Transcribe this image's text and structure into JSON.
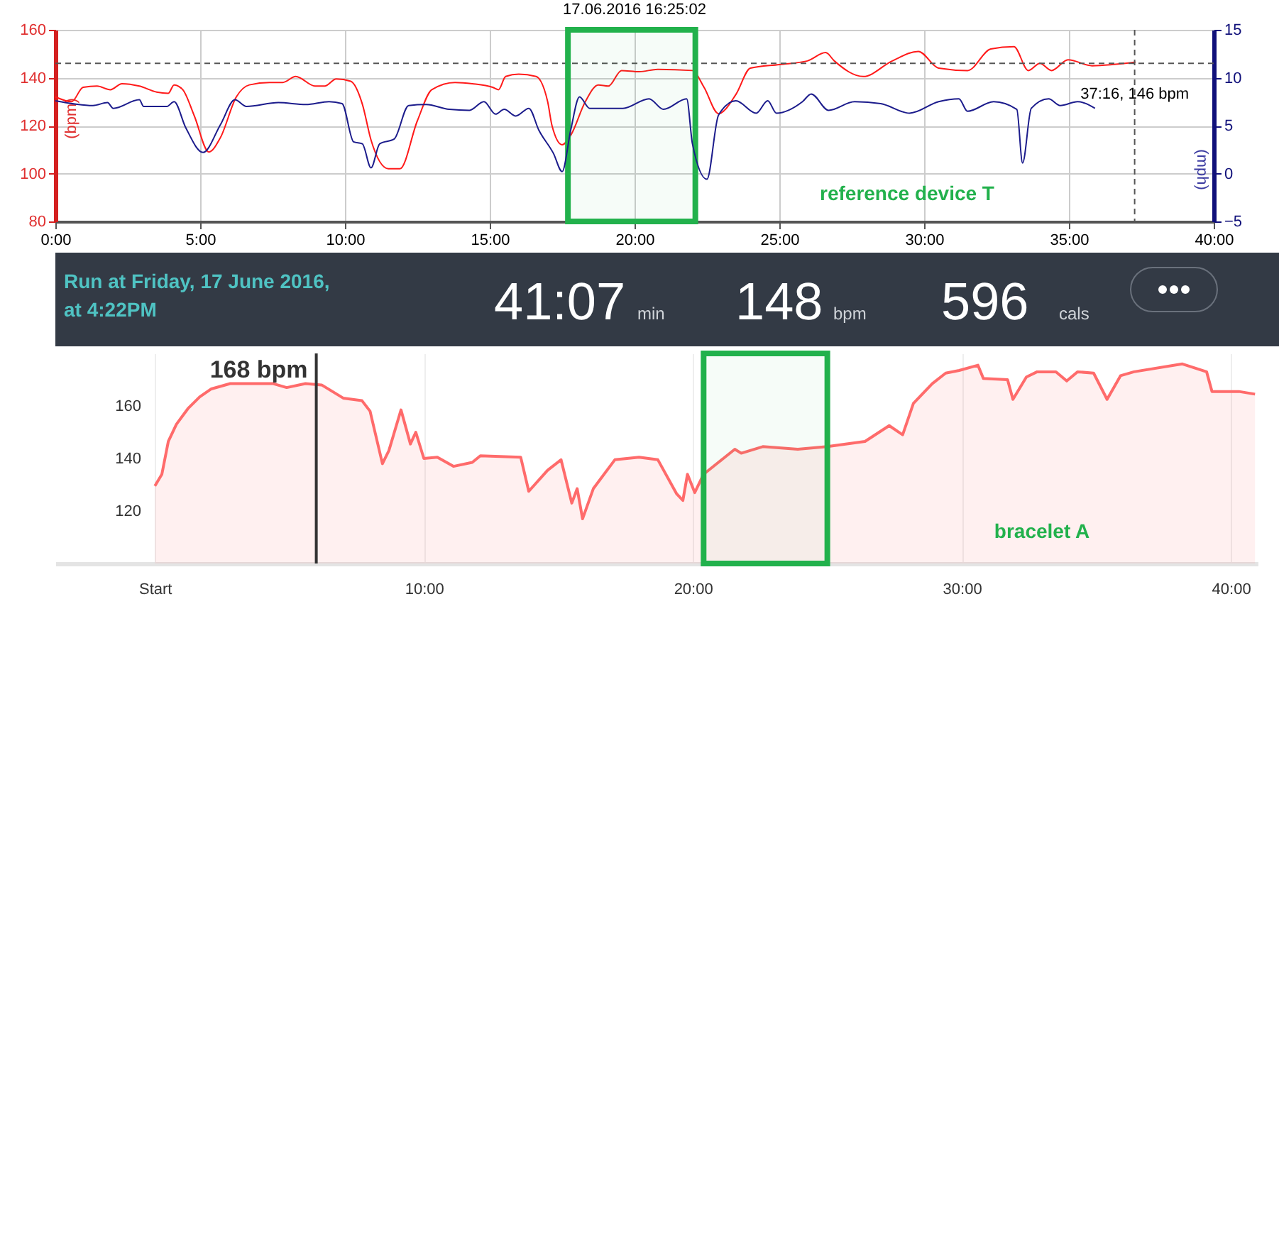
{
  "chart_data": [
    {
      "type": "line",
      "title": "17.06.2016 16:25:02",
      "ylabel": "(bpm)",
      "y2label": "(mph)",
      "annotations": [
        "reference device T",
        {
          "text": "37:16, 146 bpm",
          "x": 37.27,
          "y": 146
        }
      ],
      "xlim": [
        0,
        40
      ],
      "xticks": [
        {
          "value": 0,
          "label": "0:00"
        },
        {
          "value": 5,
          "label": "5:00"
        },
        {
          "value": 10,
          "label": "10:00"
        },
        {
          "value": 15,
          "label": "15:00"
        },
        {
          "value": 20,
          "label": "20:00"
        },
        {
          "value": 25,
          "label": "25:00"
        },
        {
          "value": 30,
          "label": "30:00"
        },
        {
          "value": 35,
          "label": "35:00"
        },
        {
          "value": 40,
          "label": "40:00"
        }
      ],
      "ylim": [
        80,
        160
      ],
      "yticks": [
        80,
        100,
        120,
        140,
        160
      ],
      "y2lim": [
        -5,
        15
      ],
      "y2ticks": [
        -5,
        0,
        5,
        10,
        15
      ],
      "grid": true,
      "ref_lines": [
        {
          "axis": "y",
          "value": 146,
          "color": "#555555",
          "line_style": "dashed"
        },
        {
          "axis": "x",
          "value": 37.27,
          "color": "#555555",
          "line_style": "dashed"
        }
      ],
      "bands": [
        {
          "axis": "x",
          "from": 17.7,
          "to": 22.1,
          "color": "#22b14c"
        }
      ],
      "series": [
        {
          "color": "#ff1a1a",
          "x": [
            0,
            0.56,
            0.96,
            1.44,
            1.9,
            2.3,
            2.9,
            3.5,
            3.9,
            4.1,
            4.4,
            4.8,
            5.3,
            5.7,
            6.25,
            6.7,
            7.4,
            7.85,
            8.3,
            8.97,
            9.3,
            9.7,
            10.2,
            10.6,
            10.9,
            11.5,
            11.9,
            12.5,
            13,
            13.8,
            14.4,
            15.1,
            15.3,
            15.55,
            16,
            16.6,
            17,
            17.15,
            17.5,
            17.8,
            18.3,
            18.75,
            19.1,
            19.55,
            20.16,
            20.8,
            22,
            22.4,
            22.9,
            23.5,
            24,
            25,
            25.97,
            26.6,
            26.9,
            27.9,
            28.9,
            29.8,
            30.5,
            31.5,
            32.3,
            33.1,
            33.6,
            34,
            34.4,
            34.97,
            35.8,
            37.3
          ],
          "values": [
            132,
            130,
            136,
            136.5,
            135,
            137.5,
            136.5,
            134,
            133.5,
            137,
            135,
            124,
            109,
            115,
            132,
            137,
            138,
            138,
            140.5,
            136.5,
            136.5,
            139.5,
            138.5,
            129,
            114,
            102,
            102,
            122,
            135,
            138,
            137.5,
            136,
            135,
            140.5,
            141.5,
            140.5,
            130,
            120,
            112,
            116,
            130,
            137,
            136.5,
            143,
            142.5,
            143.5,
            143,
            136,
            125,
            133,
            144,
            145.5,
            147,
            150.5,
            147,
            140.5,
            147,
            151,
            144,
            143,
            152,
            153,
            143,
            146,
            143,
            147.5,
            145,
            146.5
          ]
        },
        {
          "color": "#1c1c8c",
          "axis": "y2",
          "x": [
            0,
            1.3,
            1.8,
            2,
            2.9,
            3.05,
            3.85,
            4.1,
            4.5,
            5.1,
            5.7,
            6.2,
            6.6,
            7.7,
            8.65,
            9.45,
            9.9,
            10.3,
            10.6,
            10.9,
            11.2,
            11.7,
            12.2,
            12.8,
            13.6,
            14.3,
            14.8,
            15.2,
            15.5,
            15.9,
            16.35,
            16.7,
            17.2,
            17.5,
            17.8,
            18.1,
            18.45,
            19.6,
            20.5,
            21,
            21.8,
            22,
            22.5,
            22.9,
            23.5,
            24.2,
            24.6,
            24.9,
            25.8,
            26.1,
            26.7,
            27.6,
            28.5,
            29.5,
            30.5,
            31.2,
            31.5,
            32.4,
            33.2,
            33.4,
            33.7,
            34.3,
            34.7,
            35.3,
            35.9
          ],
          "values": [
            7.6,
            7.1,
            7.4,
            6.8,
            7.7,
            7,
            7,
            7.5,
            4.8,
            2.2,
            5.1,
            7.7,
            7,
            7.4,
            7.2,
            7.5,
            7.3,
            3.3,
            3.1,
            0.6,
            3.1,
            3.6,
            7.1,
            7.2,
            6.7,
            6.6,
            7.5,
            6.2,
            6.7,
            6,
            6.8,
            4.5,
            2.1,
            0.2,
            4.6,
            8,
            6.8,
            6.8,
            7.8,
            6.7,
            7.8,
            3.1,
            -0.6,
            6.1,
            7.6,
            6.3,
            7.6,
            6.3,
            7.5,
            8.3,
            6.6,
            7.5,
            7.3,
            6.3,
            7.5,
            7.8,
            6.5,
            7.5,
            6.7,
            1.1,
            6.8,
            7.8,
            7.1,
            7.5,
            6.8
          ]
        }
      ]
    },
    {
      "type": "other",
      "title": "Run at Friday, 17 June 2016,\nat 4:22PM",
      "annotations": [
        "41:07",
        "min",
        "148",
        "bpm",
        "596",
        "cals"
      ]
    },
    {
      "type": "area",
      "annotations": [
        "bracelet A"
      ],
      "xlim": [
        -3.7,
        41
      ],
      "xticks": [
        {
          "value": 0,
          "label": "Start"
        },
        {
          "value": 10,
          "label": "10:00"
        },
        {
          "value": 20,
          "label": "20:00"
        },
        {
          "value": 30,
          "label": "30:00"
        },
        {
          "value": 40,
          "label": "40:00"
        }
      ],
      "ylim": [
        100,
        180
      ],
      "yticks": [
        120,
        140,
        160
      ],
      "grid": "x",
      "ref_lines": [
        {
          "axis": "x",
          "value": 6,
          "label": "168 bpm",
          "color": "#333333"
        }
      ],
      "bands": [
        {
          "axis": "x",
          "from": 20.4,
          "to": 25,
          "color": "#22b14c"
        }
      ],
      "series": [
        {
          "color": "#ff6b6b",
          "x": [
            0,
            0.26,
            0.5,
            0.8,
            1.23,
            1.67,
            2.1,
            2.8,
            4.4,
            4.9,
            5.6,
            6.2,
            7,
            7.7,
            8,
            8.46,
            8.7,
            9.15,
            9.5,
            9.7,
            10,
            10.5,
            11.1,
            11.8,
            12.1,
            13.6,
            13.9,
            14.6,
            15.1,
            15.5,
            15.7,
            15.9,
            16.3,
            17.1,
            18,
            18.7,
            19.4,
            19.63,
            19.8,
            20.07,
            20.4,
            20.95,
            21.56,
            21.8,
            22.6,
            23.9,
            25,
            26.4,
            27.3,
            27.8,
            28.2,
            28.9,
            29.4,
            29.9,
            30.6,
            30.8,
            31.7,
            31.9,
            32.4,
            32.8,
            33.5,
            33.9,
            34.3,
            34.9,
            35.4,
            35.9,
            36.4,
            38.2,
            39.1,
            39.3,
            40.3,
            40.9
          ],
          "values": [
            129.5,
            134,
            146.5,
            153,
            159,
            163.5,
            166.5,
            168.5,
            168.5,
            167,
            168.5,
            168,
            163,
            162,
            158,
            138,
            143,
            158.5,
            145.5,
            150,
            140,
            140.5,
            137,
            138.5,
            141,
            140.5,
            127.5,
            135.5,
            139.5,
            123,
            128.5,
            117,
            128.5,
            139.5,
            140.5,
            139.5,
            126.5,
            124,
            134,
            127,
            134,
            138.5,
            143.5,
            142,
            144.5,
            143.5,
            144.5,
            146.5,
            152.5,
            149,
            161,
            168.5,
            172.5,
            173.5,
            175.5,
            170.5,
            170,
            162.5,
            171,
            173,
            173,
            169.5,
            173,
            172.5,
            162.5,
            171.5,
            173,
            176,
            173,
            165.5,
            165.5,
            164.5
          ]
        }
      ]
    }
  ]
}
